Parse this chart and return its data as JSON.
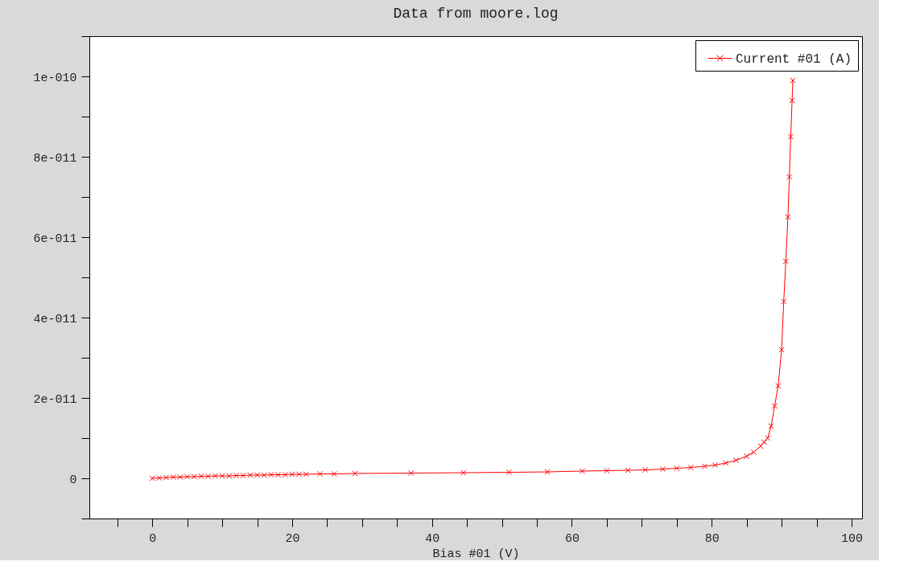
{
  "chart_data": {
    "type": "line",
    "subtitle": "Data from moore.log",
    "xlabel": "Bias #01 (V)",
    "xlim": [
      -9,
      101.5
    ],
    "ylim": [
      -1e-11,
      1.1e-10
    ],
    "xticks": [
      {
        "value": -5,
        "label": null
      },
      0,
      {
        "value": 5,
        "label": null
      },
      {
        "value": 10,
        "label": null
      },
      {
        "value": 15,
        "label": null
      },
      20,
      {
        "value": 25,
        "label": null
      },
      {
        "value": 30,
        "label": null
      },
      {
        "value": 35,
        "label": null
      },
      40,
      {
        "value": 45,
        "label": null
      },
      {
        "value": 50,
        "label": null
      },
      {
        "value": 55,
        "label": null
      },
      60,
      {
        "value": 65,
        "label": null
      },
      {
        "value": 70,
        "label": null
      },
      {
        "value": 75,
        "label": null
      },
      80,
      {
        "value": 85,
        "label": null
      },
      {
        "value": 90,
        "label": null
      },
      {
        "value": 95,
        "label": null
      },
      100
    ],
    "yticks": [
      {
        "value": -1e-11,
        "label": null
      },
      {
        "value": 0,
        "label": "0"
      },
      {
        "value": 1e-11,
        "label": null
      },
      {
        "value": 2e-11,
        "label": "2e-011"
      },
      {
        "value": 3e-11,
        "label": null
      },
      {
        "value": 4e-11,
        "label": "4e-011"
      },
      {
        "value": 5e-11,
        "label": null
      },
      {
        "value": 6e-11,
        "label": "6e-011"
      },
      {
        "value": 7e-11,
        "label": null
      },
      {
        "value": 8e-11,
        "label": "8e-011"
      },
      {
        "value": 9e-11,
        "label": null
      },
      {
        "value": 1e-10,
        "label": "1e-010"
      },
      {
        "value": 1.1e-10,
        "label": null
      }
    ],
    "marker": "cross",
    "legend": "top right",
    "grid": false,
    "series": [
      {
        "name": "Current #01 (A)",
        "color": "#ff0000",
        "x": [
          0,
          1,
          2,
          3,
          4,
          5,
          6,
          7,
          8,
          9,
          10,
          11,
          12,
          13,
          14,
          15,
          16,
          17,
          18,
          19,
          20,
          21,
          22,
          24,
          26,
          29,
          37,
          44.5,
          51,
          56.5,
          61.5,
          65,
          68,
          70.5,
          73,
          75,
          77,
          79,
          80.5,
          82,
          83.5,
          85,
          86,
          87,
          87.5,
          88,
          88.5,
          89,
          89.5,
          90,
          90.3,
          90.6,
          90.9,
          91.1,
          91.3,
          91.5,
          91.6
        ],
        "values": [
          0,
          1e-13,
          2e-13,
          3e-13,
          3e-13,
          4e-13,
          4e-13,
          5e-13,
          5e-13,
          6e-13,
          6e-13,
          6e-13,
          7e-13,
          7e-13,
          8e-13,
          8e-13,
          8e-13,
          9e-13,
          9e-13,
          9e-13,
          1e-12,
          1e-12,
          1e-12,
          1.1e-12,
          1.1e-12,
          1.2e-12,
          1.3e-12,
          1.4e-12,
          1.5e-12,
          1.6e-12,
          1.8e-12,
          1.9e-12,
          2e-12,
          2.1e-12,
          2.3e-12,
          2.5e-12,
          2.7e-12,
          3e-12,
          3.3e-12,
          3.8e-12,
          4.5e-12,
          5.5e-12,
          6.5e-12,
          8e-12,
          9e-12,
          1e-11,
          1.3e-11,
          1.8e-11,
          2.3e-11,
          3.2e-11,
          4.4e-11,
          5.4e-11,
          6.5e-11,
          7.5e-11,
          8.5e-11,
          9.4e-11,
          9.9e-11
        ]
      }
    ]
  }
}
